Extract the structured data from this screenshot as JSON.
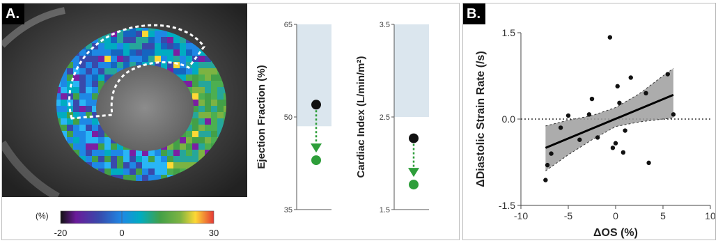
{
  "panel_a": {
    "label": "A.",
    "colorbar": {
      "unit_label": "(%)",
      "ticks": [
        "-20",
        "0",
        "30"
      ]
    }
  },
  "panel_b": {
    "label": "B."
  },
  "chart_data": [
    {
      "type": "scatter",
      "panel": "A",
      "ylabel": "Ejection Fraction (%)",
      "ylim": [
        35,
        65
      ],
      "yticks": [
        35,
        50,
        65
      ],
      "reference_range": [
        48.5,
        65
      ],
      "reference_color": "#dbe6ee",
      "points": [
        {
          "y": 52,
          "color": "#111111"
        },
        {
          "y": 43,
          "color": "#2e9e3a"
        }
      ],
      "arrow_color": "#2e9e3a"
    },
    {
      "type": "scatter",
      "panel": "A",
      "ylabel": "Cardiac Index (L/min/m²)",
      "ylim": [
        1.5,
        3.5
      ],
      "yticks": [
        "1.5",
        "2.5",
        "3.5"
      ],
      "reference_range": [
        2.5,
        3.5
      ],
      "reference_color": "#dbe6ee",
      "points": [
        {
          "y": 2.27,
          "color": "#111111"
        },
        {
          "y": 1.77,
          "color": "#2e9e3a"
        }
      ],
      "arrow_color": "#2e9e3a"
    },
    {
      "type": "scatter",
      "panel": "B",
      "xlabel": "ΔOS (%)",
      "ylabel": "ΔDiastolic Strain Rate (/s)",
      "xlim": [
        -10,
        10
      ],
      "ylim": [
        -1.5,
        1.5
      ],
      "xticks": [
        "-10",
        "-5",
        "0",
        "5",
        "10"
      ],
      "yticks": [
        "-1.5",
        "0.0",
        "1.5"
      ],
      "points": [
        [
          -7.4,
          -1.06
        ],
        [
          -7.2,
          -0.8
        ],
        [
          -6.8,
          -0.6
        ],
        [
          -5.8,
          -0.15
        ],
        [
          -5.0,
          0.06
        ],
        [
          -3.8,
          -0.36
        ],
        [
          -2.8,
          0.08
        ],
        [
          -2.5,
          0.35
        ],
        [
          -1.9,
          -0.32
        ],
        [
          -0.6,
          1.42
        ],
        [
          -0.3,
          -0.5
        ],
        [
          0.0,
          -0.42
        ],
        [
          0.2,
          0.57
        ],
        [
          0.4,
          0.28
        ],
        [
          0.8,
          -0.58
        ],
        [
          1.0,
          -0.2
        ],
        [
          1.6,
          0.72
        ],
        [
          3.2,
          0.45
        ],
        [
          3.5,
          -0.76
        ],
        [
          5.5,
          0.78
        ],
        [
          6.1,
          0.08
        ]
      ],
      "regression": {
        "x": [
          -7.4,
          6.1
        ],
        "y": [
          -0.5,
          0.42
        ]
      },
      "ci_band": {
        "x": [
          -7.4,
          -5,
          -2.5,
          0,
          2.5,
          5,
          6.1
        ],
        "upper": [
          -0.12,
          -0.02,
          0.06,
          0.2,
          0.44,
          0.75,
          0.88
        ],
        "lower": [
          -0.9,
          -0.62,
          -0.36,
          -0.13,
          -0.05,
          0.0,
          0.02
        ]
      },
      "zero_line": true,
      "point_color": "#111111",
      "band_color": "#9e9e9e"
    }
  ]
}
